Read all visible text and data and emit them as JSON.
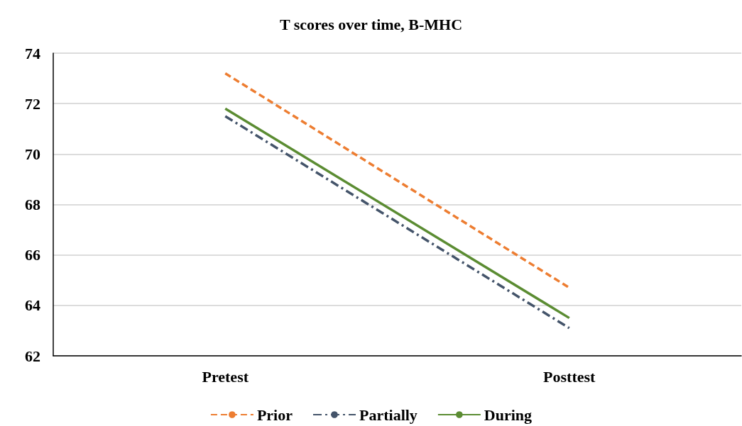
{
  "chart_data": {
    "type": "line",
    "title": "T scores over time, B-MHC",
    "categories": [
      "Pretest",
      "Posttest"
    ],
    "series": [
      {
        "name": "Prior",
        "color": "#ed7d31",
        "values": [
          73.2,
          64.7
        ],
        "line_style": "dashed"
      },
      {
        "name": "Partially",
        "color": "#44546a",
        "values": [
          71.5,
          63.1
        ],
        "line_style": "dashdot"
      },
      {
        "name": "During",
        "color": "#5b8c32",
        "values": [
          71.8,
          63.5
        ],
        "line_style": "solid"
      }
    ],
    "ylim": [
      62,
      74
    ],
    "yticks": [
      62,
      64,
      66,
      68,
      70,
      72,
      74
    ],
    "grid": "y",
    "legend": "bottom",
    "marker": "none"
  }
}
